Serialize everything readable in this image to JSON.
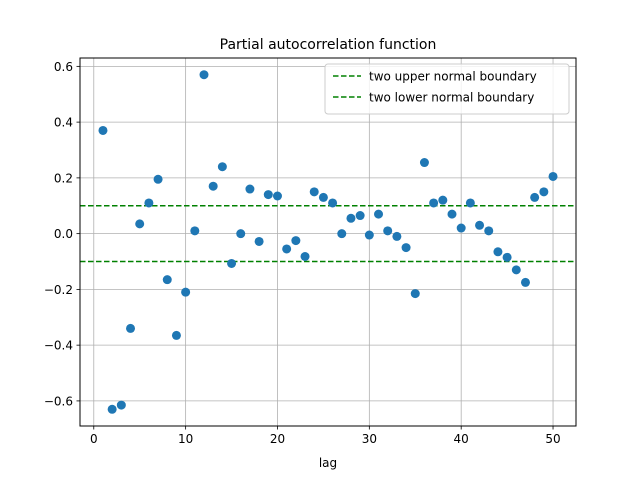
{
  "chart_data": {
    "type": "scatter",
    "title": "Partial autocorrelation function",
    "xlabel": "lag",
    "ylabel": "",
    "xlim": [
      -1.5,
      52.5
    ],
    "ylim": [
      -0.69,
      0.63
    ],
    "xticks": [
      0,
      10,
      20,
      30,
      40,
      50
    ],
    "xtick_labels": [
      "0",
      "10",
      "20",
      "30",
      "40",
      "50"
    ],
    "yticks": [
      -0.6,
      -0.4,
      -0.2,
      0.0,
      0.2,
      0.4,
      0.6
    ],
    "ytick_labels": [
      "−0.6",
      "−0.4",
      "−0.2",
      "0.0",
      "0.2",
      "0.4",
      "0.6"
    ],
    "grid": true,
    "legend_position": "top-right",
    "point_color": "#1f77b4",
    "boundary_color": "#008000",
    "series": [
      {
        "type": "scatter",
        "x": [
          1,
          2,
          3,
          4,
          5,
          6,
          7,
          8,
          9,
          10,
          11,
          12,
          13,
          14,
          15,
          16,
          17,
          18,
          19,
          20,
          21,
          22,
          23,
          24,
          25,
          26,
          27,
          28,
          29,
          30,
          31,
          32,
          33,
          34,
          35,
          36,
          37,
          38,
          39,
          40,
          41,
          42,
          43,
          44,
          45,
          46,
          47,
          48,
          49,
          50
        ],
        "y": [
          0.37,
          -0.63,
          -0.615,
          -0.34,
          0.035,
          0.11,
          0.195,
          -0.165,
          -0.365,
          -0.21,
          0.01,
          0.57,
          0.17,
          0.24,
          -0.107,
          0.0,
          0.16,
          -0.028,
          0.14,
          0.135,
          -0.055,
          -0.025,
          -0.082,
          0.15,
          0.13,
          0.11,
          0.0,
          0.055,
          0.065,
          -0.005,
          0.07,
          0.01,
          -0.01,
          -0.05,
          -0.215,
          0.255,
          0.11,
          0.12,
          0.07,
          0.02,
          0.11,
          0.03,
          0.01,
          -0.065,
          -0.085,
          -0.13,
          -0.175,
          0.13,
          0.15,
          0.205
        ]
      }
    ],
    "lines": [
      {
        "name": "two upper normal boundary",
        "y": 0.1,
        "style": "dashed"
      },
      {
        "name": "two lower normal boundary",
        "y": -0.1,
        "style": "dashed"
      }
    ]
  }
}
